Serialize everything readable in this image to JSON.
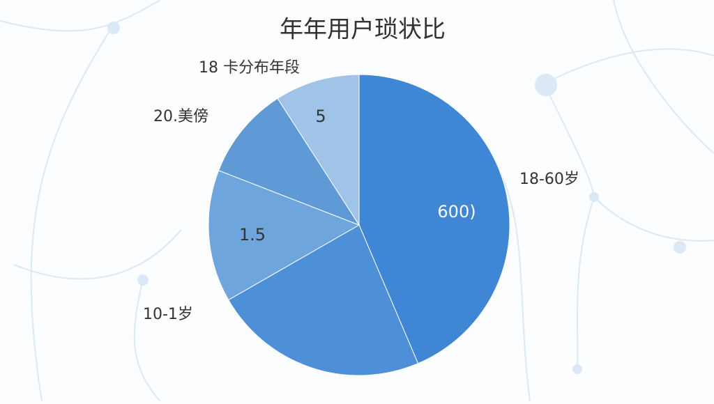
{
  "chart_data": {
    "type": "pie",
    "title": "年年用户琐状比",
    "categories": [
      "18-60岁",
      null,
      "10-1岁",
      "20.美傍",
      "18 卡分布年段"
    ],
    "values": [
      43.6,
      23.1,
      14.2,
      10,
      9.1
    ],
    "colors": [
      "#3f86d4",
      "#4e90d8",
      "#6fa5dd",
      "#5f9ad6",
      "#a0c3e8"
    ],
    "annotations": [
      "600)",
      "1.5",
      "5"
    ]
  }
}
